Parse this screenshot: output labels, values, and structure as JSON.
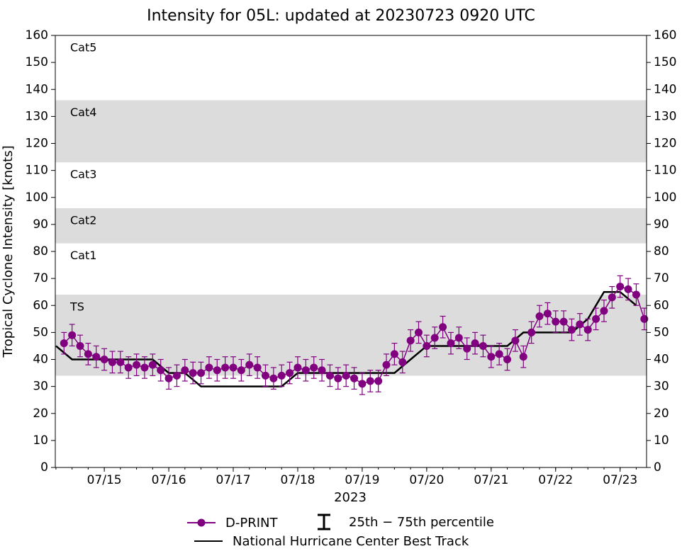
{
  "chart_data": {
    "type": "line",
    "title": "Intensity for 05L: updated at 20230723 0920 UTC",
    "ylabel": "Tropical Cyclone Intensity [knots]",
    "xlabel": "2023",
    "xlim": [
      14.24,
      23.41
    ],
    "xticks": [
      {
        "value": 15,
        "label": "07/15"
      },
      {
        "value": 16,
        "label": "07/16"
      },
      {
        "value": 17,
        "label": "07/17"
      },
      {
        "value": 18,
        "label": "07/18"
      },
      {
        "value": 19,
        "label": "07/19"
      },
      {
        "value": 20,
        "label": "07/20"
      },
      {
        "value": 21,
        "label": "07/21"
      },
      {
        "value": 22,
        "label": "07/22"
      },
      {
        "value": 23,
        "label": "07/23"
      }
    ],
    "ylim": [
      0,
      160
    ],
    "yticks": [
      0,
      10,
      20,
      30,
      40,
      50,
      60,
      70,
      80,
      90,
      100,
      110,
      120,
      130,
      140,
      150,
      160
    ],
    "right_axis": true,
    "band_color": "#dcdcdc",
    "bands": [
      {
        "label": "TS",
        "low": 34,
        "high": 64,
        "shaded": true
      },
      {
        "label": "Cat1",
        "low": 64,
        "high": 83,
        "shaded": false
      },
      {
        "label": "Cat2",
        "low": 83,
        "high": 96,
        "shaded": true
      },
      {
        "label": "Cat3",
        "low": 96,
        "high": 113,
        "shaded": false
      },
      {
        "label": "Cat4",
        "low": 113,
        "high": 136,
        "shaded": true
      },
      {
        "label": "Cat5",
        "low": 136,
        "high": 160,
        "shaded": false
      }
    ],
    "errorbar_label": "25th − 75th percentile",
    "series": [
      {
        "name": "D-PRINT",
        "color": "#800080",
        "x": [
          14.375,
          14.5,
          14.625,
          14.75,
          14.875,
          15,
          15.125,
          15.25,
          15.375,
          15.5,
          15.625,
          15.75,
          15.875,
          16,
          16.125,
          16.25,
          16.375,
          16.5,
          16.625,
          16.75,
          16.875,
          17,
          17.125,
          17.25,
          17.375,
          17.5,
          17.625,
          17.75,
          17.875,
          18,
          18.125,
          18.25,
          18.375,
          18.5,
          18.625,
          18.75,
          18.875,
          19,
          19.125,
          19.25,
          19.375,
          19.5,
          19.625,
          19.75,
          19.875,
          20,
          20.125,
          20.25,
          20.375,
          20.5,
          20.625,
          20.75,
          20.875,
          21,
          21.125,
          21.25,
          21.375,
          21.5,
          21.625,
          21.75,
          21.875,
          22,
          22.125,
          22.25,
          22.375,
          22.5,
          22.625,
          22.75,
          22.875,
          23,
          23.125,
          23.25,
          23.375
        ],
        "values": [
          46,
          49,
          45,
          42,
          41,
          40,
          39,
          39,
          37,
          38,
          37,
          38,
          36,
          33,
          34,
          36,
          35,
          35,
          37,
          36,
          37,
          37,
          36,
          38,
          37,
          34,
          33,
          34,
          35,
          37,
          36,
          37,
          36,
          34,
          33,
          34,
          33,
          31,
          32,
          32,
          38,
          42,
          39,
          47,
          50,
          45,
          48,
          52,
          46,
          48,
          44,
          46,
          45,
          41,
          42,
          40,
          47,
          41,
          50,
          56,
          57,
          54,
          54,
          51,
          53,
          51,
          55,
          58,
          63,
          67,
          66,
          64,
          55
        ],
        "p25": [
          42,
          45,
          41,
          38,
          37,
          36,
          35,
          35,
          33,
          34,
          33,
          34,
          32,
          29,
          30,
          32,
          31,
          31,
          33,
          32,
          33,
          33,
          32,
          34,
          33,
          30,
          29,
          30,
          31,
          33,
          32,
          33,
          32,
          30,
          29,
          30,
          29,
          27,
          28,
          28,
          34,
          38,
          35,
          43,
          46,
          41,
          44,
          48,
          42,
          44,
          40,
          42,
          41,
          37,
          38,
          36,
          43,
          37,
          46,
          52,
          53,
          50,
          50,
          47,
          49,
          47,
          51,
          54,
          59,
          63,
          62,
          60,
          51
        ],
        "p75": [
          50,
          53,
          49,
          46,
          45,
          44,
          43,
          43,
          41,
          42,
          41,
          42,
          40,
          37,
          38,
          40,
          39,
          39,
          41,
          40,
          41,
          41,
          40,
          42,
          41,
          38,
          37,
          38,
          39,
          41,
          40,
          41,
          40,
          38,
          37,
          38,
          37,
          35,
          36,
          36,
          42,
          46,
          43,
          51,
          54,
          49,
          52,
          56,
          50,
          52,
          48,
          50,
          49,
          45,
          46,
          44,
          51,
          45,
          54,
          60,
          61,
          58,
          58,
          55,
          57,
          55,
          59,
          62,
          67,
          71,
          70,
          68,
          59
        ]
      },
      {
        "name": "National Hurricane Center Best Track",
        "color": "#000000",
        "x": [
          14.25,
          14.5,
          14.75,
          15,
          15.25,
          15.5,
          15.75,
          16,
          16.25,
          16.5,
          16.75,
          17,
          17.25,
          17.5,
          17.75,
          18,
          18.25,
          18.5,
          18.75,
          19,
          19.25,
          19.5,
          19.75,
          20,
          20.25,
          20.5,
          20.75,
          21,
          21.25,
          21.5,
          21.75,
          22,
          22.25,
          22.5,
          22.75,
          23,
          23.25
        ],
        "values": [
          45,
          40,
          40,
          40,
          40,
          40,
          40,
          35,
          35,
          30,
          30,
          30,
          30,
          30,
          30,
          35,
          35,
          35,
          35,
          35,
          35,
          35,
          40,
          45,
          45,
          45,
          45,
          45,
          45,
          50,
          50,
          50,
          50,
          55,
          65,
          65,
          60
        ]
      }
    ]
  }
}
